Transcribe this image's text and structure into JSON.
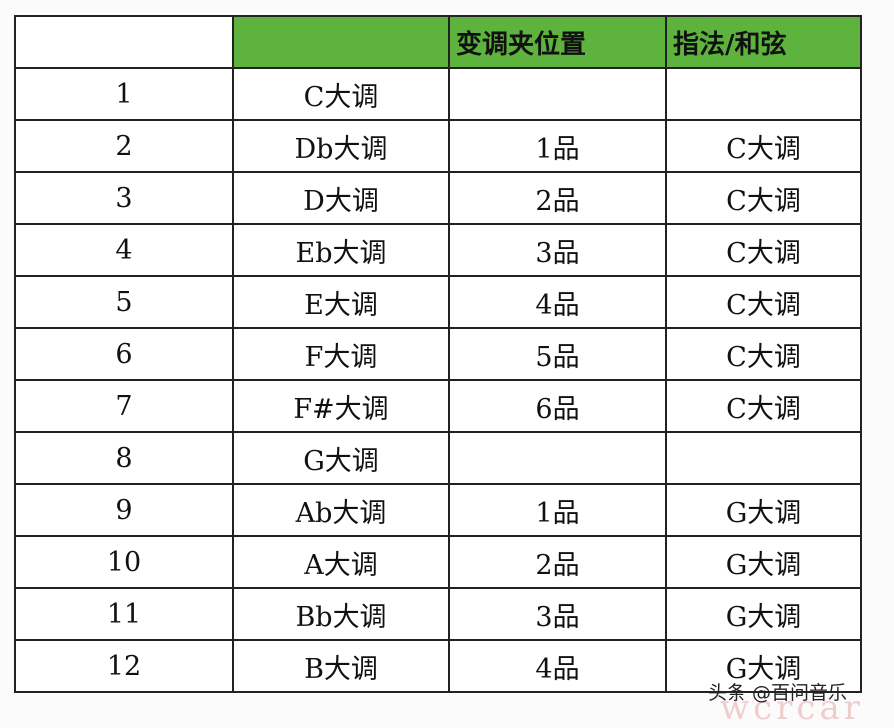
{
  "header": [
    "",
    "",
    "变调夹位置",
    "指法/和弦"
  ],
  "rows": [
    [
      "1",
      "C大调",
      "",
      ""
    ],
    [
      "2",
      "Db大调",
      "1品",
      "C大调"
    ],
    [
      "3",
      "D大调",
      "2品",
      "C大调"
    ],
    [
      "4",
      "Eb大调",
      "3品",
      "C大调"
    ],
    [
      "5",
      "E大调",
      "4品",
      "C大调"
    ],
    [
      "6",
      "F大调",
      "5品",
      "C大调"
    ],
    [
      "7",
      "F#大调",
      "6品",
      "C大调"
    ],
    [
      "8",
      "G大调",
      "",
      ""
    ],
    [
      "9",
      "Ab大调",
      "1品",
      "G大调"
    ],
    [
      "10",
      "A大调",
      "2品",
      "G大调"
    ],
    [
      "11",
      "Bb大调",
      "3品",
      "G大调"
    ],
    [
      "12",
      "B大调",
      "4品",
      "G大调"
    ]
  ],
  "watermark": "头条 @百问音乐",
  "watermark_faint": "wcrcar",
  "colors": {
    "header_green": "#5db33d"
  }
}
